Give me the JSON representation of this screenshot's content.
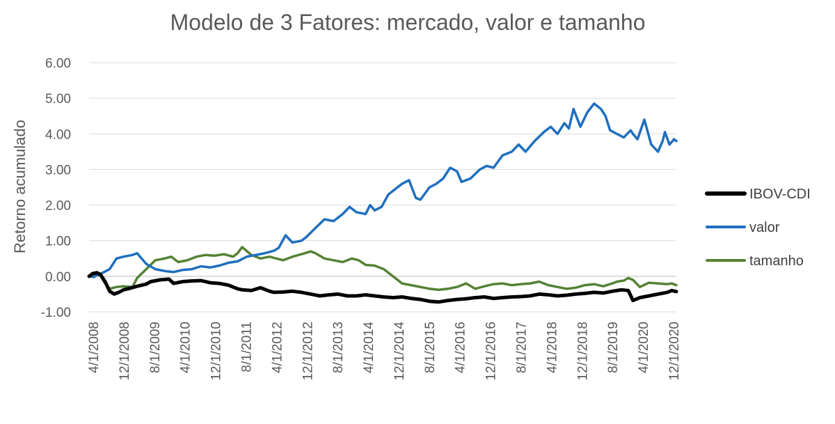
{
  "chart_data": {
    "type": "line",
    "title": "Modelo de 3 Fatores: mercado, valor e tamanho",
    "xlabel": "",
    "ylabel": "Retorno acumulado",
    "ylim": [
      -1.0,
      6.0
    ],
    "y_ticks": [
      "-1.00",
      "0.00",
      "1.00",
      "2.00",
      "3.00",
      "4.00",
      "5.00",
      "6.00"
    ],
    "x_tick_labels": [
      "4/1/2008",
      "12/1/2008",
      "8/1/2009",
      "4/1/2010",
      "12/1/2010",
      "8/1/2011",
      "4/1/2012",
      "12/1/2012",
      "8/1/2013",
      "4/1/2014",
      "12/1/2014",
      "8/1/2015",
      "4/1/2016",
      "12/1/2016",
      "8/1/2017",
      "4/1/2018",
      "12/1/2018",
      "8/1/2019",
      "4/1/2020",
      "12/1/2020"
    ],
    "x_range": [
      2008.25,
      2021.1
    ],
    "grid": true,
    "legend_position": "right",
    "series": [
      {
        "name": "IBOV-CDI",
        "color": "#000000",
        "x": [
          2008.25,
          2008.33,
          2008.42,
          2008.5,
          2008.6,
          2008.7,
          2008.8,
          2008.9,
          2009.0,
          2009.1,
          2009.3,
          2009.5,
          2009.6,
          2009.8,
          2010.0,
          2010.1,
          2010.3,
          2010.5,
          2010.7,
          2010.9,
          2011.1,
          2011.3,
          2011.5,
          2011.6,
          2011.8,
          2012.0,
          2012.2,
          2012.3,
          2012.5,
          2012.7,
          2012.9,
          2013.1,
          2013.3,
          2013.5,
          2013.7,
          2013.9,
          2014.1,
          2014.3,
          2014.5,
          2014.7,
          2014.9,
          2015.1,
          2015.3,
          2015.5,
          2015.7,
          2015.9,
          2016.1,
          2016.3,
          2016.5,
          2016.7,
          2016.9,
          2017.1,
          2017.3,
          2017.5,
          2017.7,
          2017.9,
          2018.1,
          2018.3,
          2018.5,
          2018.7,
          2018.9,
          2019.1,
          2019.3,
          2019.5,
          2019.7,
          2019.9,
          2020.05,
          2020.15,
          2020.3,
          2020.5,
          2020.7,
          2020.9,
          2021.0,
          2021.1
        ],
        "values": [
          0.0,
          0.08,
          0.1,
          0.05,
          -0.15,
          -0.42,
          -0.5,
          -0.45,
          -0.38,
          -0.35,
          -0.28,
          -0.22,
          -0.15,
          -0.1,
          -0.08,
          -0.2,
          -0.15,
          -0.13,
          -0.12,
          -0.18,
          -0.2,
          -0.25,
          -0.35,
          -0.38,
          -0.4,
          -0.32,
          -0.42,
          -0.45,
          -0.44,
          -0.42,
          -0.45,
          -0.5,
          -0.55,
          -0.52,
          -0.5,
          -0.55,
          -0.55,
          -0.52,
          -0.55,
          -0.58,
          -0.6,
          -0.58,
          -0.62,
          -0.65,
          -0.7,
          -0.72,
          -0.68,
          -0.65,
          -0.63,
          -0.6,
          -0.58,
          -0.62,
          -0.6,
          -0.58,
          -0.57,
          -0.55,
          -0.5,
          -0.52,
          -0.55,
          -0.53,
          -0.5,
          -0.48,
          -0.45,
          -0.47,
          -0.42,
          -0.38,
          -0.4,
          -0.68,
          -0.6,
          -0.55,
          -0.5,
          -0.45,
          -0.4,
          -0.43
        ]
      },
      {
        "name": "valor",
        "color": "#1F6FBF",
        "x": [
          2008.25,
          2008.35,
          2008.45,
          2008.55,
          2008.7,
          2008.85,
          2009.0,
          2009.2,
          2009.3,
          2009.5,
          2009.7,
          2009.9,
          2010.1,
          2010.3,
          2010.5,
          2010.7,
          2010.9,
          2011.1,
          2011.3,
          2011.5,
          2011.7,
          2011.9,
          2012.1,
          2012.3,
          2012.4,
          2012.55,
          2012.7,
          2012.9,
          2013.0,
          2013.2,
          2013.4,
          2013.6,
          2013.8,
          2013.95,
          2014.1,
          2014.3,
          2014.4,
          2014.5,
          2014.65,
          2014.8,
          2014.9,
          2015.1,
          2015.25,
          2015.4,
          2015.5,
          2015.7,
          2015.85,
          2016.0,
          2016.15,
          2016.3,
          2016.4,
          2016.6,
          2016.8,
          2016.95,
          2017.1,
          2017.3,
          2017.5,
          2017.65,
          2017.8,
          2018.0,
          2018.2,
          2018.35,
          2018.5,
          2018.65,
          2018.75,
          2018.85,
          2019.0,
          2019.15,
          2019.3,
          2019.45,
          2019.55,
          2019.65,
          2019.8,
          2019.95,
          2020.1,
          2020.15,
          2020.25,
          2020.4,
          2020.55,
          2020.7,
          2020.8,
          2020.85,
          2020.95,
          2021.05,
          2021.1
        ],
        "values": [
          0.0,
          -0.02,
          0.05,
          0.1,
          0.2,
          0.5,
          0.55,
          0.6,
          0.65,
          0.35,
          0.2,
          0.15,
          0.12,
          0.18,
          0.2,
          0.28,
          0.25,
          0.3,
          0.38,
          0.42,
          0.55,
          0.6,
          0.65,
          0.72,
          0.8,
          1.15,
          0.95,
          1.0,
          1.1,
          1.35,
          1.6,
          1.55,
          1.75,
          1.95,
          1.8,
          1.75,
          2.0,
          1.85,
          1.95,
          2.3,
          2.4,
          2.6,
          2.7,
          2.2,
          2.15,
          2.5,
          2.6,
          2.75,
          3.05,
          2.95,
          2.65,
          2.75,
          3.0,
          3.1,
          3.05,
          3.4,
          3.5,
          3.7,
          3.5,
          3.8,
          4.05,
          4.2,
          4.0,
          4.3,
          4.15,
          4.7,
          4.2,
          4.6,
          4.85,
          4.7,
          4.5,
          4.1,
          4.0,
          3.9,
          4.1,
          4.0,
          3.85,
          4.4,
          3.7,
          3.5,
          3.8,
          4.05,
          3.7,
          3.85,
          3.8
        ]
      },
      {
        "name": "tamanho",
        "color": "#548235",
        "x": [
          2008.25,
          2008.35,
          2008.5,
          2008.6,
          2008.7,
          2008.85,
          2009.0,
          2009.2,
          2009.3,
          2009.5,
          2009.7,
          2009.9,
          2010.05,
          2010.2,
          2010.4,
          2010.6,
          2010.8,
          2011.0,
          2011.2,
          2011.4,
          2011.5,
          2011.6,
          2011.8,
          2012.0,
          2012.2,
          2012.35,
          2012.5,
          2012.7,
          2012.9,
          2013.1,
          2013.2,
          2013.4,
          2013.6,
          2013.8,
          2014.0,
          2014.15,
          2014.3,
          2014.5,
          2014.7,
          2014.9,
          2015.1,
          2015.3,
          2015.5,
          2015.7,
          2015.9,
          2016.1,
          2016.3,
          2016.5,
          2016.7,
          2016.9,
          2017.1,
          2017.3,
          2017.5,
          2017.7,
          2017.9,
          2018.1,
          2018.3,
          2018.5,
          2018.7,
          2018.9,
          2019.1,
          2019.3,
          2019.5,
          2019.7,
          2019.8,
          2019.95,
          2020.05,
          2020.15,
          2020.3,
          2020.5,
          2020.7,
          2020.9,
          2021.0,
          2021.1
        ],
        "values": [
          0.0,
          0.05,
          0.02,
          -0.2,
          -0.35,
          -0.3,
          -0.28,
          -0.3,
          -0.05,
          0.2,
          0.45,
          0.5,
          0.55,
          0.4,
          0.45,
          0.55,
          0.6,
          0.58,
          0.62,
          0.55,
          0.65,
          0.82,
          0.6,
          0.5,
          0.55,
          0.5,
          0.45,
          0.55,
          0.62,
          0.7,
          0.65,
          0.5,
          0.45,
          0.4,
          0.5,
          0.45,
          0.32,
          0.3,
          0.2,
          0.0,
          -0.2,
          -0.25,
          -0.3,
          -0.35,
          -0.38,
          -0.35,
          -0.3,
          -0.2,
          -0.35,
          -0.28,
          -0.22,
          -0.2,
          -0.25,
          -0.22,
          -0.2,
          -0.15,
          -0.25,
          -0.3,
          -0.35,
          -0.32,
          -0.25,
          -0.22,
          -0.28,
          -0.2,
          -0.15,
          -0.12,
          -0.05,
          -0.1,
          -0.3,
          -0.18,
          -0.2,
          -0.22,
          -0.2,
          -0.25
        ]
      }
    ]
  }
}
